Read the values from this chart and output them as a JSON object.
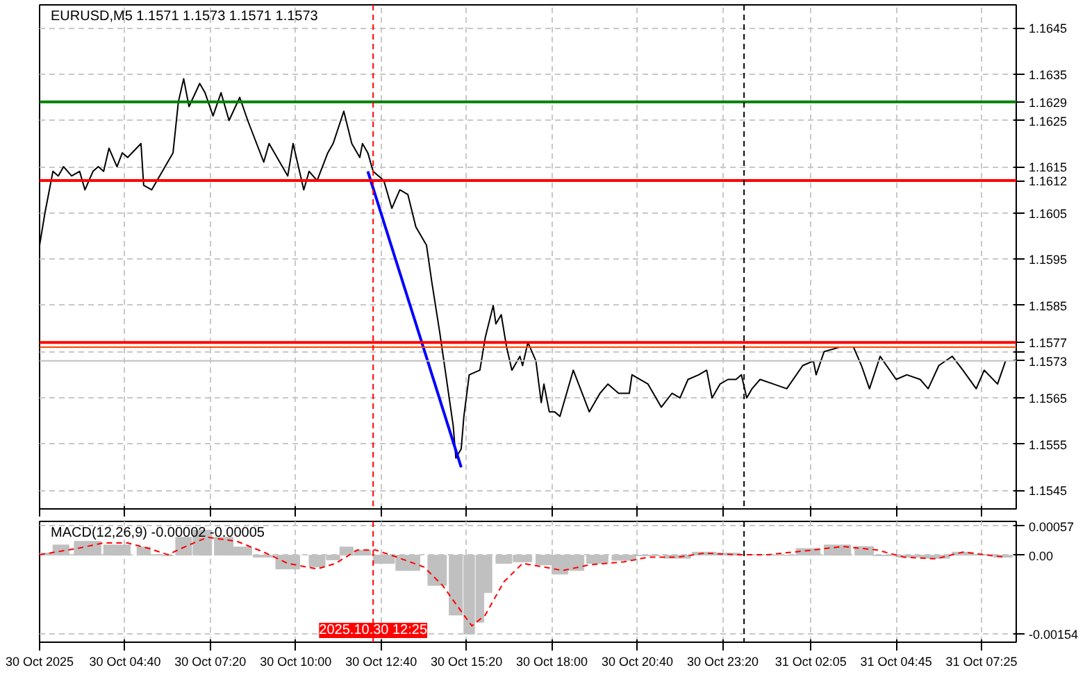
{
  "chart_data": [
    {
      "type": "line",
      "title": "EURUSD,M5  1.1571 1.1573 1.1571 1.1573",
      "x": [
        "2025-10-30T02:00",
        "2025-10-30T02:10",
        "2025-10-30T02:25",
        "2025-10-30T02:35",
        "2025-10-30T02:45",
        "2025-10-30T03:00",
        "2025-10-30T03:15",
        "2025-10-30T03:25",
        "2025-10-30T03:40",
        "2025-10-30T03:50",
        "2025-10-30T04:00",
        "2025-10-30T04:10",
        "2025-10-30T04:25",
        "2025-10-30T04:35",
        "2025-10-30T04:45",
        "2025-10-30T05:10",
        "2025-10-30T05:15",
        "2025-10-30T05:30",
        "2025-10-30T05:45",
        "2025-10-30T06:00",
        "2025-10-30T06:10",
        "2025-10-30T06:20",
        "2025-10-30T06:30",
        "2025-10-30T06:40",
        "2025-10-30T07:00",
        "2025-10-30T07:10",
        "2025-10-30T07:25",
        "2025-10-30T07:40",
        "2025-10-30T07:55",
        "2025-10-30T08:15",
        "2025-10-30T08:30",
        "2025-10-30T08:40",
        "2025-10-30T09:00",
        "2025-10-30T09:10",
        "2025-10-30T09:30",
        "2025-10-30T09:45",
        "2025-10-30T09:55",
        "2025-10-30T10:15",
        "2025-10-30T10:25",
        "2025-10-30T10:40",
        "2025-10-30T11:00",
        "2025-10-30T11:10",
        "2025-10-30T11:30",
        "2025-10-30T11:45",
        "2025-10-30T12:00",
        "2025-10-30T12:05",
        "2025-10-30T12:15",
        "2025-10-30T12:25",
        "2025-10-30T12:45",
        "2025-10-30T13:00",
        "2025-10-30T13:15",
        "2025-10-30T13:30",
        "2025-10-30T13:45",
        "2025-10-30T14:05",
        "2025-10-30T14:15",
        "2025-10-30T14:30",
        "2025-10-30T14:35",
        "2025-10-30T14:55",
        "2025-10-30T15:00",
        "2025-10-30T15:10",
        "2025-10-30T15:15",
        "2025-10-30T15:25",
        "2025-10-30T15:45",
        "2025-10-30T15:55",
        "2025-10-30T16:10",
        "2025-10-30T16:15",
        "2025-10-30T16:25",
        "2025-10-30T16:35",
        "2025-10-30T16:45",
        "2025-10-30T17:00",
        "2025-10-30T17:05",
        "2025-10-30T17:15",
        "2025-10-30T17:30",
        "2025-10-30T17:40",
        "2025-10-30T17:45",
        "2025-10-30T17:55",
        "2025-10-30T18:05",
        "2025-10-30T18:15",
        "2025-10-30T18:40",
        "2025-10-30T19:10",
        "2025-10-30T19:30",
        "2025-10-30T19:45",
        "2025-10-30T20:05",
        "2025-10-30T20:25",
        "2025-10-30T20:30",
        "2025-10-30T21:00",
        "2025-10-30T21:25",
        "2025-10-30T21:45",
        "2025-10-30T22:00",
        "2025-10-30T22:15",
        "2025-10-30T22:35",
        "2025-10-30T22:50",
        "2025-10-30T23:00",
        "2025-10-30T23:15",
        "2025-10-30T23:30",
        "2025-10-30T23:45",
        "2025-10-30T23:55",
        "2025-10-31T00:05",
        "2025-10-31T00:15",
        "2025-10-31T00:30",
        "2025-10-31T00:55",
        "2025-10-31T01:20",
        "2025-10-31T01:50",
        "2025-10-31T02:10",
        "2025-10-31T02:15",
        "2025-10-31T02:30",
        "2025-10-31T03:00",
        "2025-10-31T03:15",
        "2025-10-31T03:25",
        "2025-10-31T03:40",
        "2025-10-31T03:55",
        "2025-10-31T04:15",
        "2025-10-31T04:45",
        "2025-10-31T05:05",
        "2025-10-31T05:30",
        "2025-10-31T05:45",
        "2025-10-31T06:05",
        "2025-10-31T06:30",
        "2025-10-31T06:50",
        "2025-10-31T07:15",
        "2025-10-31T07:30",
        "2025-10-31T07:55",
        "2025-10-31T08:10"
      ],
      "series": [
        {
          "color": "#000000",
          "values": [
            1.1598,
            1.1605,
            1.1614,
            1.1613,
            1.1615,
            1.1613,
            1.1614,
            1.161,
            1.1614,
            1.1615,
            1.1614,
            1.1619,
            1.1615,
            1.1618,
            1.1617,
            1.162,
            1.1611,
            1.161,
            1.1613,
            1.1616,
            1.1618,
            1.1629,
            1.1634,
            1.1628,
            1.1633,
            1.1631,
            1.1626,
            1.1631,
            1.1625,
            1.163,
            1.1625,
            1.1622,
            1.1616,
            1.162,
            1.1616,
            1.1613,
            1.162,
            1.161,
            1.1614,
            1.1612,
            1.1618,
            1.162,
            1.1627,
            1.162,
            1.1617,
            1.162,
            1.1618,
            1.1614,
            1.1612,
            1.1606,
            1.161,
            1.1609,
            1.1602,
            1.1598,
            1.159,
            1.1579,
            1.1575,
            1.1559,
            1.1552,
            1.1554,
            1.1561,
            1.157,
            1.1571,
            1.1578,
            1.1585,
            1.1581,
            1.1583,
            1.1576,
            1.1571,
            1.1574,
            1.1572,
            1.1577,
            1.1573,
            1.1564,
            1.1568,
            1.1562,
            1.1562,
            1.1561,
            1.1571,
            1.1562,
            1.1566,
            1.1568,
            1.1566,
            1.1566,
            1.157,
            1.1568,
            1.1563,
            1.1566,
            1.1565,
            1.1569,
            1.157,
            1.1571,
            1.1565,
            1.1568,
            1.1569,
            1.1569,
            1.157,
            1.1565,
            1.1567,
            1.1569,
            1.1568,
            1.1567,
            1.1572,
            1.1573,
            1.157,
            1.1575,
            1.1576,
            1.1576,
            1.1576,
            1.1572,
            1.1567,
            1.1574,
            1.1569,
            1.157,
            1.1569,
            1.1567,
            1.1572,
            1.1574,
            1.1571,
            1.1567,
            1.1571,
            1.1568,
            1.1573
          ]
        },
        {
          "type": "line",
          "color": "#0000ff",
          "x": [
            "2025-10-30T12:15",
            "2025-10-30T15:10"
          ],
          "values": [
            1.1614,
            1.155
          ]
        }
      ],
      "xlim": [
        "2025-10-30T02:00",
        "2025-10-31T08:30"
      ],
      "ylim": [
        1.1541,
        1.165
      ],
      "xticks": [
        "2025-10-30T02:00",
        "2025-10-30T04:40",
        "2025-10-30T07:20",
        "2025-10-30T10:00",
        "2025-10-30T12:40",
        "2025-10-30T15:20",
        "2025-10-30T18:00",
        "2025-10-30T20:40",
        "2025-10-30T23:20",
        "2025-10-31T02:05",
        "2025-10-31T04:45",
        "2025-10-31T07:25"
      ],
      "yticks": [
        1.1545,
        1.1555,
        1.1565,
        {
          "value": 1.1575,
          "label": null
        },
        1.1585,
        1.1595,
        1.1605,
        1.1615,
        1.1625,
        1.1635,
        1.1645
      ],
      "grid": true,
      "tick_labels": "y",
      "ref_lines": [
        {
          "axis": "y",
          "value": 1.1629,
          "label": "1.1629",
          "color": "#008000"
        },
        {
          "axis": "y",
          "value": 1.1612,
          "label": "1.1612",
          "color": "#ff0000"
        },
        {
          "axis": "y",
          "value": 1.1577,
          "label": "1.1577",
          "color": "#ff0000"
        },
        {
          "axis": "y",
          "value": 1.1576,
          "color": "#ff4500"
        },
        {
          "axis": "y",
          "value": 1.1573,
          "label": "1.1573",
          "color": "#c0c0c0"
        },
        {
          "axis": "x",
          "value": "2025-10-30T12:25",
          "color": "#ff0000",
          "line_style": "dashed"
        },
        {
          "axis": "x",
          "value": "2025-10-31T00:00",
          "color": "#000000",
          "line_style": "dashed"
        }
      ]
    },
    {
      "type": "bar",
      "title": "MACD(12,26,9) -0.00002 -0.00005",
      "series": [
        {
          "type": "bar",
          "color": "#c0c0c0",
          "x": [
            "2025-10-30T02:10",
            "2025-10-30T02:40",
            "2025-10-30T03:30",
            "2025-10-30T04:25",
            "2025-10-30T05:15",
            "2025-10-30T05:40",
            "2025-10-30T06:00",
            "2025-10-30T06:30",
            "2025-10-30T07:05",
            "2025-10-30T07:45",
            "2025-10-30T08:20",
            "2025-10-30T09:00",
            "2025-10-30T09:45",
            "2025-10-30T10:40",
            "2025-10-30T11:10",
            "2025-10-30T11:35",
            "2025-10-30T12:05",
            "2025-10-30T12:45",
            "2025-10-30T13:30",
            "2025-10-30T14:25",
            "2025-10-30T15:00",
            "2025-10-30T15:25",
            "2025-10-30T15:45",
            "2025-10-30T16:00",
            "2025-10-30T16:30",
            "2025-10-30T17:05",
            "2025-10-30T17:45",
            "2025-10-30T18:15",
            "2025-10-30T18:45",
            "2025-10-30T19:25",
            "2025-10-30T20:15",
            "2025-10-30T21:00",
            "2025-10-30T21:55",
            "2025-10-30T22:45",
            "2025-10-30T23:30",
            "2025-10-31T00:25",
            "2025-10-31T01:15",
            "2025-10-31T02:00",
            "2025-10-31T02:55",
            "2025-10-31T03:45",
            "2025-10-31T04:20",
            "2025-10-31T05:10",
            "2025-10-31T06:00",
            "2025-10-31T06:50",
            "2025-10-31T07:30",
            "2025-10-31T08:05"
          ],
          "values": [
            4e-05,
            0.0002,
            0.00027,
            0.0002,
            0.00016,
            1e-05,
            -1e-05,
            0.00035,
            0.00049,
            0.00035,
            0.00016,
            -4e-05,
            -0.00027,
            -0.00023,
            -9e-05,
            0.00016,
            0.0001,
            -0.00016,
            -0.0003,
            -0.00059,
            -0.00117,
            -0.00154,
            -0.00131,
            -0.00073,
            -0.00016,
            -0.00013,
            -0.00019,
            -0.00037,
            -0.0003,
            -0.00016,
            -0.0001,
            -1e-05,
            -6e-05,
            6e-05,
            4e-05,
            null,
            0.0,
            0.00013,
            0.0002,
            0.00017,
            -1e-05,
            -4e-05,
            -6e-05,
            6e-05,
            1e-05,
            -4e-05
          ]
        },
        {
          "type": "line",
          "color": "#ff0000",
          "line_style": "dashed",
          "x": [
            "2025-10-30T02:00",
            "2025-10-30T03:10",
            "2025-10-30T04:00",
            "2025-10-30T04:45",
            "2025-10-30T05:25",
            "2025-10-30T06:00",
            "2025-10-30T06:40",
            "2025-10-30T07:15",
            "2025-10-30T08:10",
            "2025-10-30T09:00",
            "2025-10-30T09:45",
            "2025-10-30T10:40",
            "2025-10-30T11:15",
            "2025-10-30T11:55",
            "2025-10-30T12:30",
            "2025-10-30T13:10",
            "2025-10-30T14:00",
            "2025-10-30T14:35",
            "2025-10-30T15:15",
            "2025-10-30T15:30",
            "2025-10-30T15:55",
            "2025-10-30T16:30",
            "2025-10-30T17:05",
            "2025-10-30T17:45",
            "2025-10-30T18:20",
            "2025-10-30T19:10",
            "2025-10-30T20:15",
            "2025-10-30T21:00",
            "2025-10-30T21:55",
            "2025-10-30T22:45",
            "2025-10-30T23:45",
            "2025-10-31T00:45",
            "2025-10-31T02:00",
            "2025-10-31T03:05",
            "2025-10-31T04:10",
            "2025-10-31T05:00",
            "2025-10-31T06:00",
            "2025-10-31T06:50",
            "2025-10-31T07:30",
            "2025-10-31T08:10"
          ],
          "values": [
            1e-05,
            0.00013,
            0.00024,
            0.00024,
            0.00013,
            1e-05,
            0.0002,
            0.00035,
            0.00027,
            6e-05,
            -0.00016,
            -0.00027,
            -0.00016,
            0.0001,
            0.0001,
            -4e-05,
            -0.00023,
            -0.00059,
            -0.00117,
            -0.00138,
            -0.00117,
            -0.00052,
            -0.00016,
            -0.00023,
            -0.0003,
            -0.00019,
            -0.00013,
            -4e-05,
            -4e-05,
            4e-05,
            1e-05,
            1e-05,
            9e-05,
            0.00017,
            0.0001,
            -4e-05,
            -7e-05,
            6e-05,
            1e-05,
            -4e-05
          ]
        }
      ],
      "xlim": [
        "2025-10-30T02:00",
        "2025-10-31T08:30"
      ],
      "ylim": [
        -0.0017,
        0.00066
      ],
      "xticks": [
        {
          "value": "2025-10-30T02:00",
          "label": "30 Oct 2025"
        },
        {
          "value": "2025-10-30T04:40",
          "label": "30 Oct 04:40"
        },
        {
          "value": "2025-10-30T07:20",
          "label": "30 Oct 07:20"
        },
        {
          "value": "2025-10-30T10:00",
          "label": "30 Oct 10:00"
        },
        {
          "value": "2025-10-30T12:40",
          "label": "30 Oct 12:40"
        },
        {
          "value": "2025-10-30T15:20",
          "label": "30 Oct 15:20"
        },
        {
          "value": "2025-10-30T18:00",
          "label": "30 Oct 18:00"
        },
        {
          "value": "2025-10-30T20:40",
          "label": "30 Oct 20:40"
        },
        {
          "value": "2025-10-30T23:20",
          "label": "30 Oct 23:20"
        },
        {
          "value": "2025-10-31T02:05",
          "label": "31 Oct 02:05"
        },
        {
          "value": "2025-10-31T04:45",
          "label": "31 Oct 04:45"
        },
        {
          "value": "2025-10-31T07:25",
          "label": "31 Oct 07:25"
        }
      ],
      "yticks": [
        {
          "value": 0.00057,
          "label": "0.00057"
        },
        {
          "value": 0,
          "label": "0.00"
        },
        {
          "value": -0.00154,
          "label": "-0.00154"
        }
      ],
      "grid": true,
      "ref_lines": [
        {
          "axis": "x",
          "value": "2025-10-30T12:25",
          "label": "2025.10.30 12:25",
          "color": "#ff0000",
          "line_style": "dashed"
        },
        {
          "axis": "x",
          "value": "2025-10-31T00:00",
          "color": "#000000",
          "line_style": "dashed"
        }
      ]
    }
  ]
}
